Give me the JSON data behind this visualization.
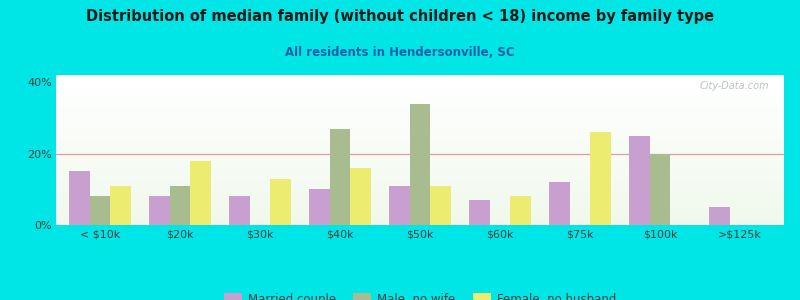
{
  "title": "Distribution of median family (without children < 18) income by family type",
  "subtitle": "All residents in Hendersonville, SC",
  "categories": [
    "< $10k",
    "$20k",
    "$30k",
    "$40k",
    "$50k",
    "$60k",
    "$75k",
    "$100k",
    ">$125k"
  ],
  "married_couple": [
    15,
    8,
    8,
    10,
    11,
    7,
    12,
    25,
    5
  ],
  "male_no_wife": [
    8,
    11,
    0,
    27,
    34,
    0,
    0,
    20,
    0
  ],
  "female_no_husband": [
    11,
    18,
    13,
    16,
    11,
    8,
    26,
    0,
    0
  ],
  "married_color": "#c8a0d0",
  "male_color": "#a8bc90",
  "female_color": "#ecec70",
  "bg_color": "#00e5e5",
  "title_color": "#1a1a1a",
  "subtitle_color": "#1a5faa",
  "axis_color": "#404040",
  "ylabel_vals": [
    "0%",
    "20%",
    "40%"
  ],
  "ylim": [
    0,
    42
  ],
  "yticks": [
    0,
    20,
    40
  ],
  "watermark": "City-Data.com",
  "bar_width": 0.26,
  "legend_labels": [
    "Married couple",
    "Male, no wife",
    "Female, no husband"
  ],
  "grid_line_color": "#d8a0a0",
  "plot_bg_colors": [
    "#f0f8ec",
    "#ffffff"
  ]
}
